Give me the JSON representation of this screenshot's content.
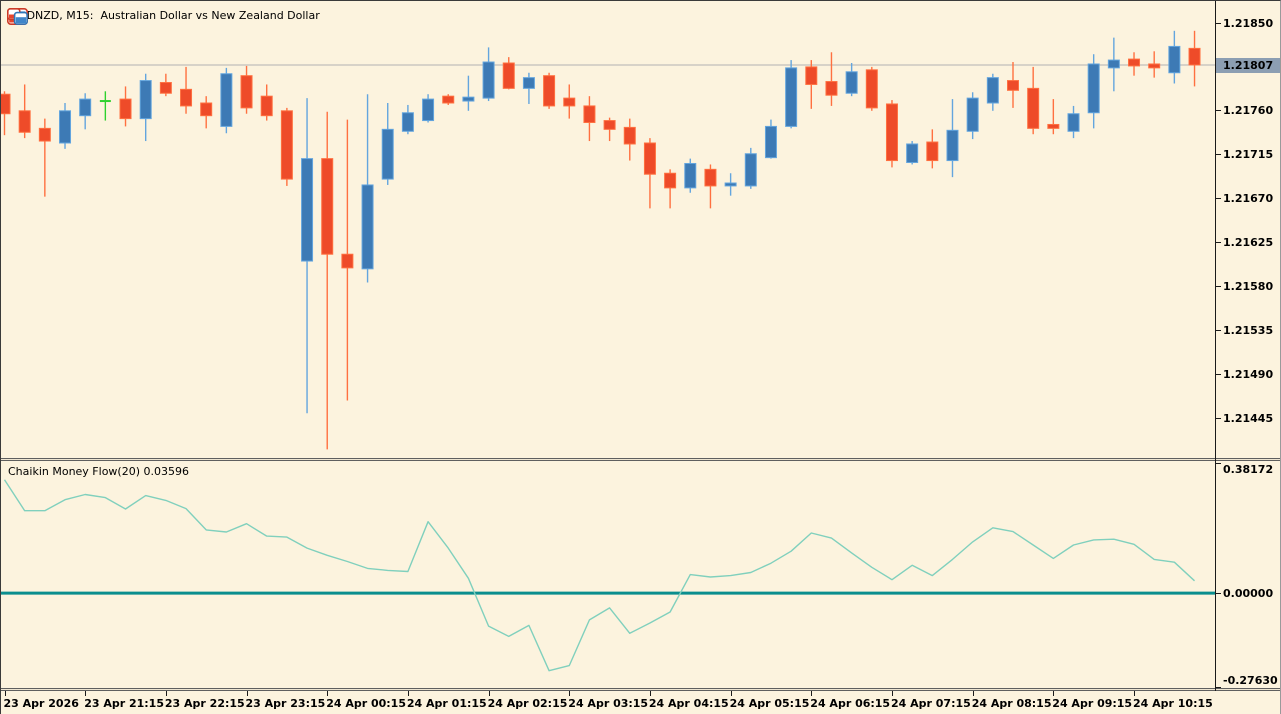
{
  "window": {
    "title": "AUDNZD, M15:  Australian Dollar vs New Zealand Dollar",
    "toolbar_icons": [
      {
        "name": "quote-panel-icon"
      },
      {
        "name": "chart-windows-icon"
      }
    ]
  },
  "price_pane": {
    "axis_ticks": [
      "1.21850",
      "1.21760",
      "1.21715",
      "1.21670",
      "1.21625",
      "1.21580",
      "1.21535",
      "1.21490",
      "1.21445"
    ],
    "bid_label": "1.21807"
  },
  "indicator_pane": {
    "label": "Chaikin Money Flow(20) 0.03596",
    "axis_ticks": [
      "0.38172",
      "0.00000",
      "-0.27630"
    ]
  },
  "time_axis": {
    "labels": [
      "23 Apr 2026",
      "23 Apr 21:15",
      "23 Apr 22:15",
      "23 Apr 23:15",
      "24 Apr 00:15",
      "24 Apr 01:15",
      "24 Apr 02:15",
      "24 Apr 03:15",
      "24 Apr 04:15",
      "24 Apr 05:15",
      "24 Apr 06:15",
      "24 Apr 07:15",
      "24 Apr 08:15",
      "24 Apr 09:15",
      "24 Apr 10:15"
    ]
  },
  "colors": {
    "background": "#fcf3de",
    "bull_fill": "#3d7ab5",
    "bull_border": "#63a5de",
    "bear_fill": "#ee4b29",
    "bear_border": "#ff7040",
    "doji": "#2ed12e",
    "bid_line": "#b2b2b2",
    "bid_label_bg": "#8c9eb2",
    "zero_line": "#0b8e8e",
    "cmf_line": "#80d0bd",
    "axis_text": "#000000"
  },
  "chart_data": [
    {
      "type": "candlestick",
      "symbol": "AUDNZD",
      "timeframe": "M15",
      "title": "AUDNZD, M15:  Australian Dollar vs New Zealand Dollar",
      "bar_interval_minutes": 15,
      "current_bid": 1.21807,
      "price_axis_ticks": [
        1.2185,
        1.2176,
        1.21715,
        1.2167,
        1.21625,
        1.2158,
        1.21535,
        1.2149,
        1.21445
      ],
      "doji_indices": [
        5
      ],
      "candles_ohlc": [
        [
          1.21777,
          1.2178,
          1.21735,
          1.21757
        ],
        [
          1.2176,
          1.21787,
          1.21732,
          1.21738
        ],
        [
          1.21742,
          1.21752,
          1.21672,
          1.21729
        ],
        [
          1.21727,
          1.21768,
          1.21721,
          1.2176
        ],
        [
          1.21755,
          1.21778,
          1.21741,
          1.21772
        ],
        [
          1.2177,
          1.2178,
          1.2175,
          1.2177
        ],
        [
          1.21772,
          1.21785,
          1.21744,
          1.21752
        ],
        [
          1.21752,
          1.21798,
          1.21729,
          1.21791
        ],
        [
          1.21789,
          1.21798,
          1.21775,
          1.21778
        ],
        [
          1.21782,
          1.21805,
          1.21757,
          1.21765
        ],
        [
          1.21768,
          1.21775,
          1.21742,
          1.21755
        ],
        [
          1.21744,
          1.21804,
          1.21737,
          1.21798
        ],
        [
          1.21796,
          1.21806,
          1.21757,
          1.21763
        ],
        [
          1.21775,
          1.21787,
          1.2175,
          1.21755
        ],
        [
          1.2176,
          1.21763,
          1.21683,
          1.2169
        ],
        [
          1.21606,
          1.21773,
          1.2145,
          1.21711
        ],
        [
          1.21711,
          1.21759,
          1.21413,
          1.21613
        ],
        [
          1.21613,
          1.21751,
          1.21463,
          1.21599
        ],
        [
          1.21598,
          1.21777,
          1.21584,
          1.21684
        ],
        [
          1.2169,
          1.21768,
          1.21684,
          1.21741
        ],
        [
          1.21739,
          1.21766,
          1.21736,
          1.21758
        ],
        [
          1.2175,
          1.21777,
          1.21748,
          1.21772
        ],
        [
          1.21775,
          1.21777,
          1.21766,
          1.21768
        ],
        [
          1.2177,
          1.21796,
          1.2176,
          1.21774
        ],
        [
          1.21773,
          1.21825,
          1.2177,
          1.2181
        ],
        [
          1.21809,
          1.21815,
          1.21782,
          1.21783
        ],
        [
          1.21783,
          1.21799,
          1.21767,
          1.21794
        ],
        [
          1.21796,
          1.21799,
          1.21762,
          1.21765
        ],
        [
          1.21773,
          1.21787,
          1.21752,
          1.21765
        ],
        [
          1.21765,
          1.21775,
          1.21729,
          1.21748
        ],
        [
          1.2175,
          1.21753,
          1.21729,
          1.21741
        ],
        [
          1.21743,
          1.21752,
          1.21709,
          1.21726
        ],
        [
          1.21727,
          1.21732,
          1.2166,
          1.21695
        ],
        [
          1.21696,
          1.217,
          1.2166,
          1.21681
        ],
        [
          1.21681,
          1.21711,
          1.21676,
          1.21706
        ],
        [
          1.217,
          1.21705,
          1.2166,
          1.21683
        ],
        [
          1.21683,
          1.21696,
          1.21673,
          1.21686
        ],
        [
          1.21683,
          1.21722,
          1.2168,
          1.21716
        ],
        [
          1.21712,
          1.21751,
          1.21711,
          1.21744
        ],
        [
          1.21744,
          1.21812,
          1.21742,
          1.21804
        ],
        [
          1.21805,
          1.21812,
          1.21762,
          1.21787
        ],
        [
          1.2179,
          1.2182,
          1.21765,
          1.21776
        ],
        [
          1.21778,
          1.21809,
          1.21775,
          1.218
        ],
        [
          1.21802,
          1.21805,
          1.2176,
          1.21763
        ],
        [
          1.21767,
          1.21771,
          1.21702,
          1.21709
        ],
        [
          1.21707,
          1.21729,
          1.21705,
          1.21726
        ],
        [
          1.21728,
          1.21741,
          1.21701,
          1.21709
        ],
        [
          1.21709,
          1.21772,
          1.21692,
          1.2174
        ],
        [
          1.21739,
          1.21779,
          1.21731,
          1.21773
        ],
        [
          1.21768,
          1.21798,
          1.2176,
          1.21794
        ],
        [
          1.21791,
          1.2181,
          1.21763,
          1.21781
        ],
        [
          1.21783,
          1.21805,
          1.21736,
          1.21742
        ],
        [
          1.21746,
          1.21772,
          1.21736,
          1.21742
        ],
        [
          1.21739,
          1.21765,
          1.21732,
          1.21757
        ],
        [
          1.21758,
          1.21818,
          1.21742,
          1.21808
        ],
        [
          1.21804,
          1.21835,
          1.2178,
          1.21812
        ],
        [
          1.21813,
          1.2182,
          1.21796,
          1.21806
        ],
        [
          1.21808,
          1.21821,
          1.21794,
          1.21804
        ],
        [
          1.21799,
          1.21842,
          1.21788,
          1.21826
        ],
        [
          1.21824,
          1.21842,
          1.21785,
          1.21807
        ]
      ]
    },
    {
      "type": "line",
      "title": "Chaikin Money Flow(20)",
      "current_value": 0.03596,
      "ylim": [
        -0.2763,
        0.38172
      ],
      "zero_line": 0.0,
      "axis_ticks": [
        0.38172,
        0.0,
        -0.2763
      ],
      "values": [
        0.33,
        0.24,
        0.24,
        0.272,
        0.287,
        0.278,
        0.245,
        0.284,
        0.27,
        0.246,
        0.184,
        0.178,
        0.202,
        0.166,
        0.163,
        0.131,
        0.11,
        0.092,
        0.072,
        0.066,
        0.063,
        0.208,
        0.131,
        0.043,
        -0.096,
        -0.126,
        -0.094,
        -0.226,
        -0.211,
        -0.078,
        -0.043,
        -0.117,
        -0.087,
        -0.055,
        0.054,
        0.047,
        0.051,
        0.06,
        0.087,
        0.122,
        0.175,
        0.16,
        0.117,
        0.075,
        0.039,
        0.081,
        0.051,
        0.098,
        0.149,
        0.19,
        0.179,
        0.14,
        0.101,
        0.14,
        0.155,
        0.157,
        0.142,
        0.098,
        0.09,
        0.03596
      ]
    }
  ]
}
